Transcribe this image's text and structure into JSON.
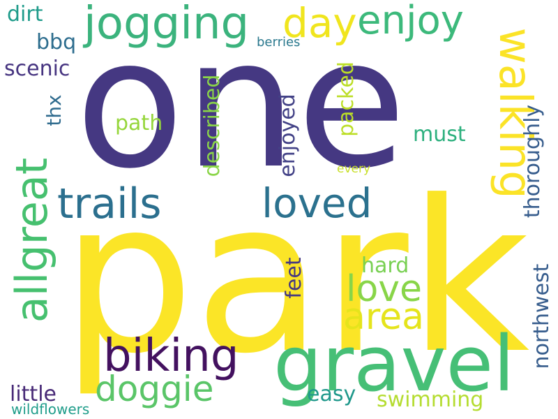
{
  "words": {
    "one": "one",
    "park": "park",
    "gravel": "gravel",
    "allgreat": "allgreat",
    "walking": "walking",
    "jogging": "jogging",
    "enjoy": "enjoy",
    "trails": "trails",
    "loved": "loved",
    "biking": "biking",
    "doggie": "doggie",
    "love": "love",
    "area": "area",
    "day": "day",
    "northwest": "northwest",
    "thoroughly": "thoroughly",
    "described": "described",
    "enjoyed": "enjoyed",
    "packed": "packed",
    "swimming": "swimming",
    "must": "must",
    "path": "path",
    "easy": "easy",
    "feet": "feet",
    "hard": "hard",
    "little": "little",
    "scenic": "scenic",
    "dirt": "dirt",
    "bbq": "bbq",
    "thx": "thx",
    "berries": "berries",
    "every": "every",
    "wildflowers": "wildflowers"
  }
}
